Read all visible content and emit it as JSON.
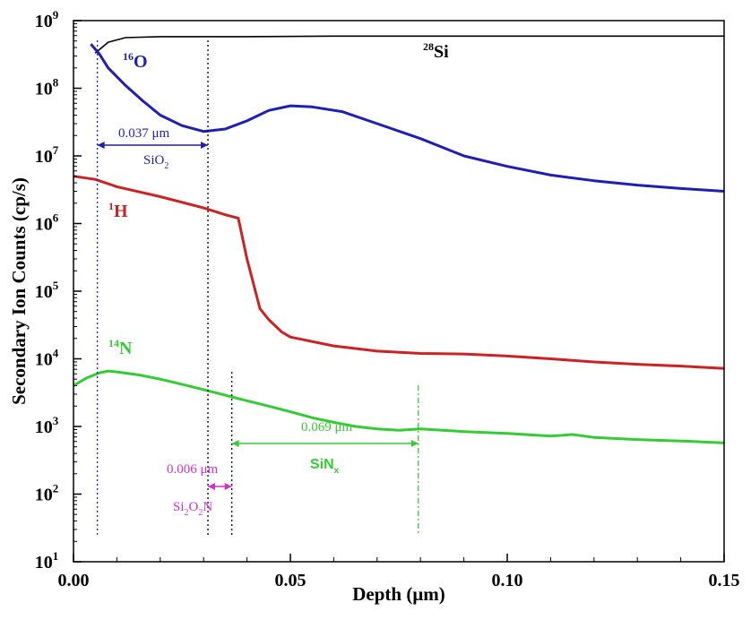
{
  "chart_data": {
    "type": "line",
    "xlabel": "Depth  (μm)",
    "ylabel": "Secondary Ion Counts (cp/s)",
    "xlim": [
      0.0,
      0.15
    ],
    "ylim": [
      10,
      1000000000
    ],
    "yscale": "log",
    "grid": false,
    "x_ticks": [
      "0.00",
      "0.05",
      "0.10",
      "0.15"
    ],
    "x_tick_values": [
      0.0,
      0.05,
      0.1,
      0.15
    ],
    "y_ticks": [
      {
        "value": 10,
        "base": "10",
        "exp": "1"
      },
      {
        "value": 100,
        "base": "10",
        "exp": "2"
      },
      {
        "value": 1000,
        "base": "10",
        "exp": "3"
      },
      {
        "value": 10000,
        "base": "10",
        "exp": "4"
      },
      {
        "value": 100000,
        "base": "10",
        "exp": "5"
      },
      {
        "value": 1000000,
        "base": "10",
        "exp": "6"
      },
      {
        "value": 10000000,
        "base": "10",
        "exp": "7"
      },
      {
        "value": 100000000,
        "base": "10",
        "exp": "8"
      },
      {
        "value": 1000000000,
        "base": "10",
        "exp": "9"
      }
    ],
    "series": [
      {
        "id": "si",
        "mass": "28",
        "element": "Si",
        "color": "#000000",
        "x": [
          0.005,
          0.008,
          0.012,
          0.02,
          0.04,
          0.06,
          0.08,
          0.1,
          0.12,
          0.15
        ],
        "y": [
          330000000,
          480000000,
          560000000,
          580000000,
          580000000,
          590000000,
          590000000,
          590000000,
          590000000,
          590000000
        ]
      },
      {
        "id": "o",
        "mass": "16",
        "element": "O",
        "color": "#1f1fb5",
        "x": [
          0.004,
          0.006,
          0.008,
          0.012,
          0.016,
          0.02,
          0.025,
          0.03,
          0.035,
          0.04,
          0.045,
          0.05,
          0.055,
          0.062,
          0.07,
          0.08,
          0.09,
          0.1,
          0.11,
          0.12,
          0.13,
          0.14,
          0.15
        ],
        "y": [
          450000000,
          320000000,
          200000000,
          110000000,
          65000000,
          40000000,
          28000000,
          23000000,
          25000000,
          33000000,
          47000000,
          55000000,
          53000000,
          45000000,
          30000000,
          18000000,
          10000000,
          7000000,
          5200000,
          4300000,
          3700000,
          3300000,
          3000000
        ]
      },
      {
        "id": "h",
        "mass": "1",
        "element": "H",
        "color": "#cc2222",
        "x": [
          0.0,
          0.005,
          0.01,
          0.02,
          0.03,
          0.035,
          0.038,
          0.04,
          0.043,
          0.045,
          0.048,
          0.05,
          0.06,
          0.07,
          0.08,
          0.09,
          0.1,
          0.11,
          0.12,
          0.13,
          0.14,
          0.15
        ],
        "y": [
          5000000,
          4500000,
          3500000,
          2500000,
          1700000,
          1350000,
          1200000,
          300000,
          55000,
          38000,
          25000,
          21000,
          15500,
          13000,
          12000,
          11800,
          11000,
          10000,
          9000,
          8300,
          7800,
          7200
        ]
      },
      {
        "id": "n",
        "mass": "14",
        "element": "N",
        "color": "#33cc33",
        "x": [
          0.0,
          0.003,
          0.006,
          0.008,
          0.01,
          0.015,
          0.02,
          0.025,
          0.03,
          0.035,
          0.04,
          0.045,
          0.05,
          0.055,
          0.06,
          0.065,
          0.07,
          0.075,
          0.08,
          0.085,
          0.09,
          0.1,
          0.11,
          0.115,
          0.12,
          0.13,
          0.14,
          0.15
        ],
        "y": [
          4000,
          5200,
          6200,
          6600,
          6400,
          5800,
          5000,
          4200,
          3500,
          2900,
          2400,
          2000,
          1650,
          1350,
          1150,
          1000,
          920,
          880,
          920,
          880,
          840,
          790,
          720,
          760,
          690,
          640,
          610,
          570
        ]
      }
    ],
    "annotations": {
      "sio2_thickness": "0.037 μm",
      "sio2_label": "SiO",
      "sio2_sub": "2",
      "sion_thickness": "0.006 μm",
      "sion_label_a": "Si",
      "sion_sub_a": "2",
      "sion_label_b": "O",
      "sion_sub_b": "2",
      "sion_label_c": "N",
      "sinx_thickness": "0.069 μm",
      "sinx_label": "SiN",
      "sinx_sub": "x"
    },
    "markers_x": [
      0.0055,
      0.031,
      0.0365,
      0.0795
    ]
  }
}
